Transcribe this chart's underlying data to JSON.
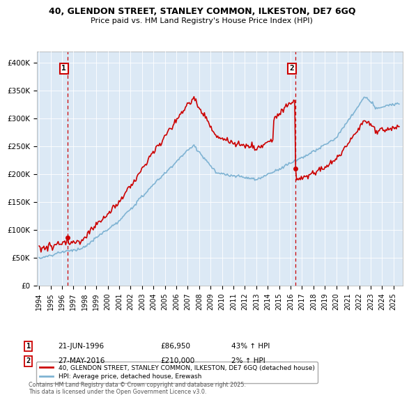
{
  "title_line1": "40, GLENDON STREET, STANLEY COMMON, ILKESTON, DE7 6GQ",
  "title_line2": "Price paid vs. HM Land Registry's House Price Index (HPI)",
  "ylim": [
    0,
    420000
  ],
  "yticks": [
    0,
    50000,
    100000,
    150000,
    200000,
    250000,
    300000,
    350000,
    400000
  ],
  "ytick_labels": [
    "£0",
    "£50K",
    "£100K",
    "£150K",
    "£200K",
    "£250K",
    "£300K",
    "£350K",
    "£400K"
  ],
  "xlim_start": 1993.8,
  "xlim_end": 2025.8,
  "xticks": [
    1994,
    1995,
    1996,
    1997,
    1998,
    1999,
    2000,
    2001,
    2002,
    2003,
    2004,
    2005,
    2006,
    2007,
    2008,
    2009,
    2010,
    2011,
    2012,
    2013,
    2014,
    2015,
    2016,
    2017,
    2018,
    2019,
    2020,
    2021,
    2022,
    2023,
    2024,
    2025
  ],
  "sale1_x": 1996.47,
  "sale1_y": 86950,
  "sale2_x": 2016.41,
  "sale2_y": 210000,
  "red_line_color": "#cc0000",
  "blue_line_color": "#7fb3d3",
  "vline_color": "#cc0000",
  "legend_red_label": "40, GLENDON STREET, STANLEY COMMON, ILKESTON, DE7 6GQ (detached house)",
  "legend_blue_label": "HPI: Average price, detached house, Erewash",
  "sale1_date": "21-JUN-1996",
  "sale1_price": "£86,950",
  "sale1_hpi": "43% ↑ HPI",
  "sale2_date": "27-MAY-2016",
  "sale2_price": "£210,000",
  "sale2_hpi": "2% ↑ HPI",
  "footer_text": "Contains HM Land Registry data © Crown copyright and database right 2025.\nThis data is licensed under the Open Government Licence v3.0.",
  "background_color": "#ffffff",
  "plot_bg_color": "#dce9f5"
}
